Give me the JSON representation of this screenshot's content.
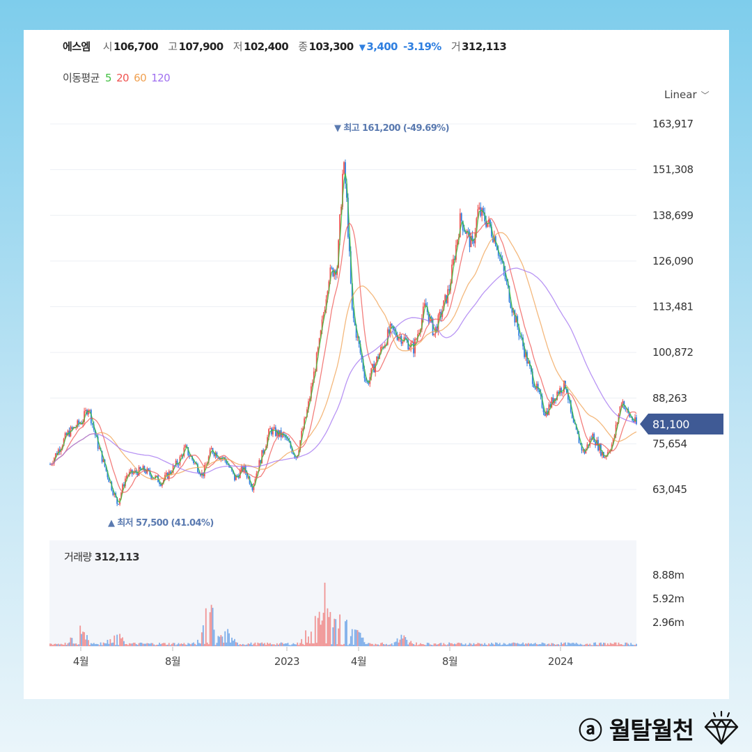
{
  "header": {
    "name": "에스엠",
    "open_label": "시",
    "open": "106,700",
    "high_label": "고",
    "high": "107,900",
    "low_label": "저",
    "low": "102,400",
    "close_label": "종",
    "close": "103,300",
    "change_arrow": "▼",
    "change": "3,400",
    "change_pct": "-3.19%",
    "volume_label": "거",
    "volume": "312,113"
  },
  "ma_legend": {
    "title": "이동평균",
    "periods": [
      {
        "label": "5",
        "color": "#3fbf3f"
      },
      {
        "label": "20",
        "color": "#ef5350"
      },
      {
        "label": "60",
        "color": "#f0a050"
      },
      {
        "label": "120",
        "color": "#a070f0"
      }
    ]
  },
  "scale_selector": {
    "value": "Linear"
  },
  "volume_panel": {
    "label": "거래량",
    "value": "312,113"
  },
  "brand": {
    "text": "ⓐ 월탈월천"
  },
  "chart_data": {
    "type": "candlestick",
    "y_ticks": [
      "163,917",
      "151,308",
      "138,699",
      "126,090",
      "113,481",
      "100,872",
      "88,263",
      "75,654",
      "63,045"
    ],
    "y_tick_values": [
      163917,
      151308,
      138699,
      126090,
      113481,
      100872,
      88263,
      75654,
      63045
    ],
    "x_ticks": [
      "4월",
      "8월",
      "2023",
      "4월",
      "8월",
      "2024"
    ],
    "current_price": {
      "label": "81,100",
      "value": 81100
    },
    "high_marker": {
      "label": "▼ 최고 161,200 (-49.69%)",
      "value": 161200
    },
    "low_marker": {
      "label": "▲ 최저 57,500 (41.04%)",
      "value": 57500
    },
    "volume_ticks": [
      "8.88m",
      "5.92m",
      "2.96m"
    ],
    "volume_tick_values": [
      8880000,
      5920000,
      2960000
    ],
    "up_color": "#ef5350",
    "down_color": "#2f7fe0",
    "price_path": [
      {
        "t": 0,
        "v": 70000
      },
      {
        "t": 0.03,
        "v": 78500
      },
      {
        "t": 0.055,
        "v": 82000
      },
      {
        "t": 0.065,
        "v": 86000
      },
      {
        "t": 0.08,
        "v": 76000
      },
      {
        "t": 0.1,
        "v": 66000
      },
      {
        "t": 0.115,
        "v": 59000
      },
      {
        "t": 0.13,
        "v": 67000
      },
      {
        "t": 0.16,
        "v": 68500
      },
      {
        "t": 0.19,
        "v": 65000
      },
      {
        "t": 0.22,
        "v": 71000
      },
      {
        "t": 0.23,
        "v": 74500
      },
      {
        "t": 0.26,
        "v": 67000
      },
      {
        "t": 0.275,
        "v": 74000
      },
      {
        "t": 0.3,
        "v": 71000
      },
      {
        "t": 0.315,
        "v": 66000
      },
      {
        "t": 0.33,
        "v": 69000
      },
      {
        "t": 0.345,
        "v": 64000
      },
      {
        "t": 0.36,
        "v": 72000
      },
      {
        "t": 0.375,
        "v": 79500
      },
      {
        "t": 0.4,
        "v": 77500
      },
      {
        "t": 0.42,
        "v": 72000
      },
      {
        "t": 0.44,
        "v": 86000
      },
      {
        "t": 0.46,
        "v": 104000
      },
      {
        "t": 0.475,
        "v": 122000
      },
      {
        "t": 0.49,
        "v": 125000
      },
      {
        "t": 0.5,
        "v": 153000
      },
      {
        "t": 0.505,
        "v": 145000
      },
      {
        "t": 0.515,
        "v": 112000
      },
      {
        "t": 0.52,
        "v": 108000
      },
      {
        "t": 0.53,
        "v": 100000
      },
      {
        "t": 0.54,
        "v": 92000
      },
      {
        "t": 0.56,
        "v": 100000
      },
      {
        "t": 0.58,
        "v": 107000
      },
      {
        "t": 0.6,
        "v": 105000
      },
      {
        "t": 0.62,
        "v": 102000
      },
      {
        "t": 0.64,
        "v": 114000
      },
      {
        "t": 0.655,
        "v": 106000
      },
      {
        "t": 0.68,
        "v": 118000
      },
      {
        "t": 0.7,
        "v": 138000
      },
      {
        "t": 0.72,
        "v": 130000
      },
      {
        "t": 0.73,
        "v": 140000
      },
      {
        "t": 0.745,
        "v": 137000
      },
      {
        "t": 0.76,
        "v": 132000
      },
      {
        "t": 0.79,
        "v": 112000
      },
      {
        "t": 0.82,
        "v": 95000
      },
      {
        "t": 0.845,
        "v": 84000
      },
      {
        "t": 0.865,
        "v": 90000
      },
      {
        "t": 0.88,
        "v": 92000
      },
      {
        "t": 0.89,
        "v": 82000
      },
      {
        "t": 0.91,
        "v": 73000
      },
      {
        "t": 0.925,
        "v": 78000
      },
      {
        "t": 0.945,
        "v": 72000
      },
      {
        "t": 0.96,
        "v": 76000
      },
      {
        "t": 0.975,
        "v": 88000
      },
      {
        "t": 0.985,
        "v": 84000
      },
      {
        "t": 1,
        "v": 81100
      }
    ],
    "volume_spikes": [
      {
        "t": 0.05,
        "v": 0.35
      },
      {
        "t": 0.11,
        "v": 0.25
      },
      {
        "t": 0.27,
        "v": 0.85
      },
      {
        "t": 0.3,
        "v": 0.25
      },
      {
        "t": 0.44,
        "v": 0.25
      },
      {
        "t": 0.455,
        "v": 0.5
      },
      {
        "t": 0.47,
        "v": 1.15
      },
      {
        "t": 0.485,
        "v": 0.6
      },
      {
        "t": 0.5,
        "v": 0.75
      },
      {
        "t": 0.52,
        "v": 0.3
      },
      {
        "t": 0.6,
        "v": 0.2
      }
    ]
  }
}
